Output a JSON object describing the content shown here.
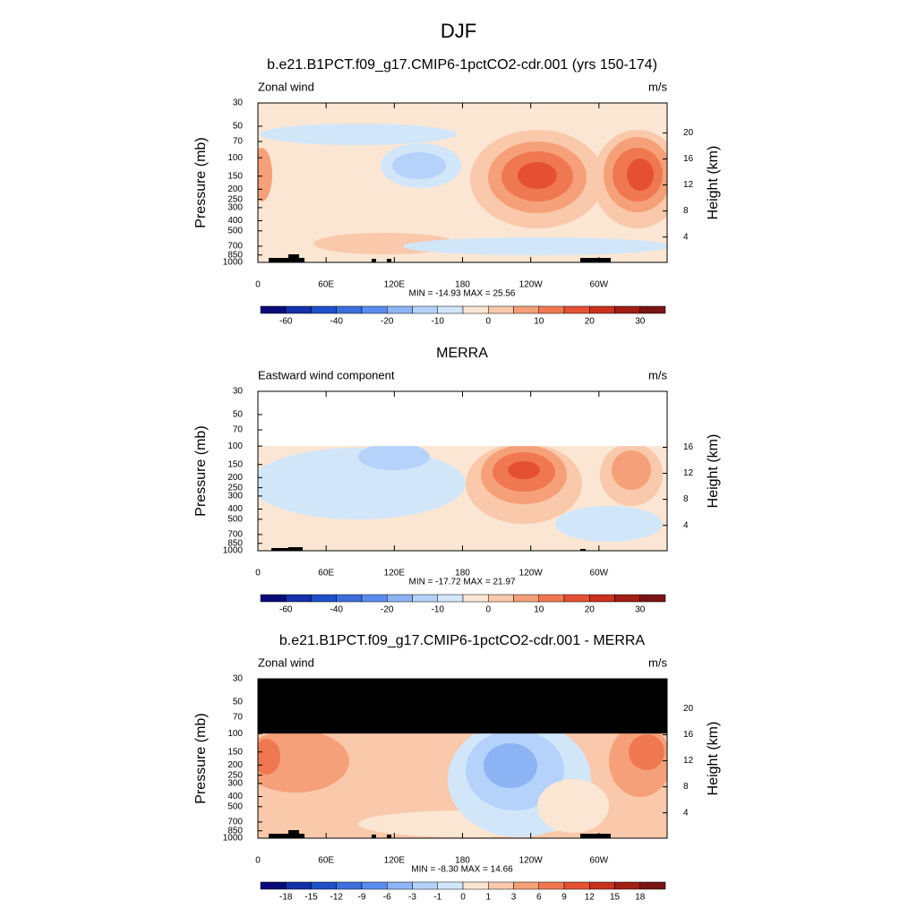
{
  "suptitle": "DJF",
  "chart_data": [
    {
      "type": "contour",
      "title": "b.e21.B1PCT.f09_g17.CMIP6-1pctCO2-cdr.001 (yrs 150-174)",
      "left_string": "Zonal wind",
      "right_string": "m/s",
      "ylabel": "Pressure (mb)",
      "y2label": "Height (km)",
      "annotation": "MIN = -14.93  MAX =  25.56",
      "xlim": [
        0,
        360
      ],
      "xticks": [
        0,
        {
          "value": 60,
          "label": "60E"
        },
        {
          "value": 120,
          "label": "120E"
        },
        180,
        {
          "value": 240,
          "label": "120W"
        },
        {
          "value": 300,
          "label": "60W"
        }
      ],
      "ylim": [
        1000,
        30
      ],
      "ylog": true,
      "yticks": [
        30,
        50,
        70,
        100,
        150,
        200,
        250,
        300,
        400,
        500,
        700,
        850,
        1000
      ],
      "y2lim": [
        0.1,
        24.6
      ],
      "y2ticks": [
        4,
        8,
        12,
        16,
        20
      ],
      "colorbar": {
        "colors": [
          "#0a0a78",
          "#1430aa",
          "#1e50c8",
          "#3c6edc",
          "#5a8cf0",
          "#8cb4f5",
          "#b4d2fa",
          "#d2e6fa",
          "#fae6d2",
          "#fac8aa",
          "#f5a078",
          "#f07850",
          "#e65032",
          "#c8321e",
          "#a01e14",
          "#781414"
        ],
        "labels": [
          -60,
          null,
          -40,
          null,
          -20,
          null,
          -10,
          null,
          0,
          null,
          10,
          null,
          20,
          null,
          30
        ]
      }
    },
    {
      "type": "contour",
      "title": "MERRA",
      "left_string": "Eastward wind component",
      "right_string": "m/s",
      "ylabel": "Pressure (mb)",
      "y2label": "Height (km)",
      "annotation": "MIN = -17.72  MAX =  21.97",
      "xlim": [
        0,
        360
      ],
      "xticks": [
        0,
        {
          "value": 60,
          "label": "60E"
        },
        {
          "value": 120,
          "label": "120E"
        },
        180,
        {
          "value": 240,
          "label": "120W"
        },
        {
          "value": 300,
          "label": "60W"
        }
      ],
      "ylim": [
        1000,
        30
      ],
      "ylog": true,
      "yticks": [
        30,
        50,
        70,
        100,
        150,
        200,
        250,
        300,
        400,
        500,
        700,
        850,
        1000
      ],
      "y2lim": [
        0.1,
        24.6
      ],
      "y2ticks": [
        4,
        8,
        12,
        16
      ],
      "data_top": 100,
      "missing_color": "#ffffff",
      "colorbar": {
        "colors": [
          "#0a0a78",
          "#1430aa",
          "#1e50c8",
          "#3c6edc",
          "#5a8cf0",
          "#8cb4f5",
          "#b4d2fa",
          "#d2e6fa",
          "#fae6d2",
          "#fac8aa",
          "#f5a078",
          "#f07850",
          "#e65032",
          "#c8321e",
          "#a01e14",
          "#781414"
        ],
        "labels": [
          -60,
          null,
          -40,
          null,
          -20,
          null,
          -10,
          null,
          0,
          null,
          10,
          null,
          20,
          null,
          30
        ]
      }
    },
    {
      "type": "contour",
      "title": "b.e21.B1PCT.f09_g17.CMIP6-1pctCO2-cdr.001 - MERRA",
      "left_string": "Zonal wind",
      "right_string": "m/s",
      "ylabel": "Pressure (mb)",
      "y2label": "Height (km)",
      "annotation": "MIN = -8.30  MAX =  14.66",
      "xlim": [
        0,
        360
      ],
      "xticks": [
        0,
        {
          "value": 60,
          "label": "60E"
        },
        {
          "value": 120,
          "label": "120E"
        },
        180,
        {
          "value": 240,
          "label": "120W"
        },
        {
          "value": 300,
          "label": "60W"
        }
      ],
      "ylim": [
        1000,
        30
      ],
      "ylog": true,
      "yticks": [
        30,
        50,
        70,
        100,
        150,
        200,
        250,
        300,
        400,
        500,
        700,
        850,
        1000
      ],
      "y2lim": [
        0.1,
        24.6
      ],
      "y2ticks": [
        4,
        8,
        12,
        16,
        20
      ],
      "data_top": 100,
      "missing_color": "#000000",
      "colorbar": {
        "colors": [
          "#0a0a78",
          "#1430aa",
          "#1e50c8",
          "#3c6edc",
          "#5a8cf0",
          "#8cb4f5",
          "#b4d2fa",
          "#d2e6fa",
          "#fae6d2",
          "#fac8aa",
          "#f5a078",
          "#f07850",
          "#e65032",
          "#c8321e",
          "#a01e14",
          "#781414"
        ],
        "labels": [
          -18,
          -15,
          -12,
          -9,
          -6,
          -3,
          -1,
          0,
          1,
          3,
          6,
          9,
          12,
          15,
          18
        ]
      }
    }
  ]
}
